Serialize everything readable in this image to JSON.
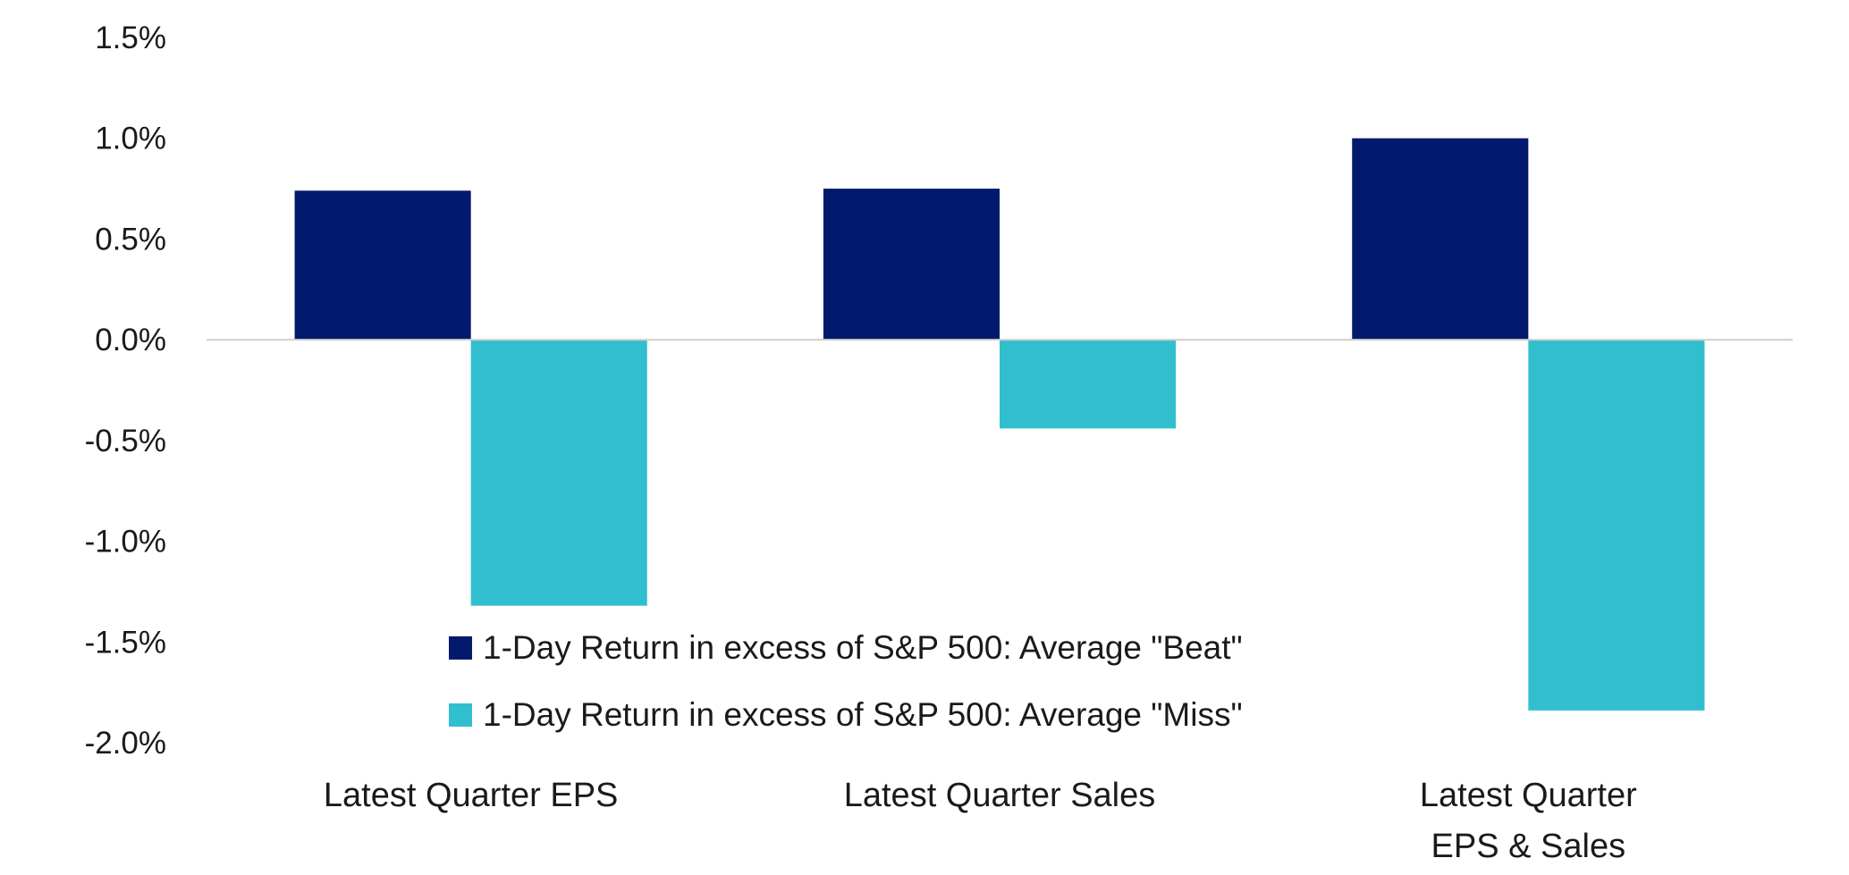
{
  "chart_data": {
    "type": "bar",
    "title": "",
    "xlabel": "",
    "ylabel": "",
    "categories": [
      [
        "Latest Quarter EPS"
      ],
      [
        "Latest Quarter Sales"
      ],
      [
        "Latest Quarter",
        "EPS & Sales"
      ]
    ],
    "series": [
      {
        "name": "1-Day Return in excess of S&P 500: Average \"Beat\"",
        "color": "#021A6E",
        "values": [
          0.74,
          0.75,
          1.0
        ]
      },
      {
        "name": "1-Day Return in excess of S&P 500: Average \"Miss\"",
        "color": "#31BFCF",
        "values": [
          -1.32,
          -0.44,
          -1.84
        ]
      }
    ],
    "ylim": [
      -2.0,
      1.5
    ],
    "yticks": [
      1.5,
      1.0,
      0.5,
      0.0,
      -0.5,
      -1.0,
      -1.5,
      -2.0
    ],
    "ytick_labels": [
      "1.5%",
      "1.0%",
      "0.5%",
      "0.0%",
      "-0.5%",
      "-1.0%",
      "-1.5%",
      "-2.0%"
    ],
    "grid": false,
    "legend_position": "bottom-center inside plot"
  }
}
